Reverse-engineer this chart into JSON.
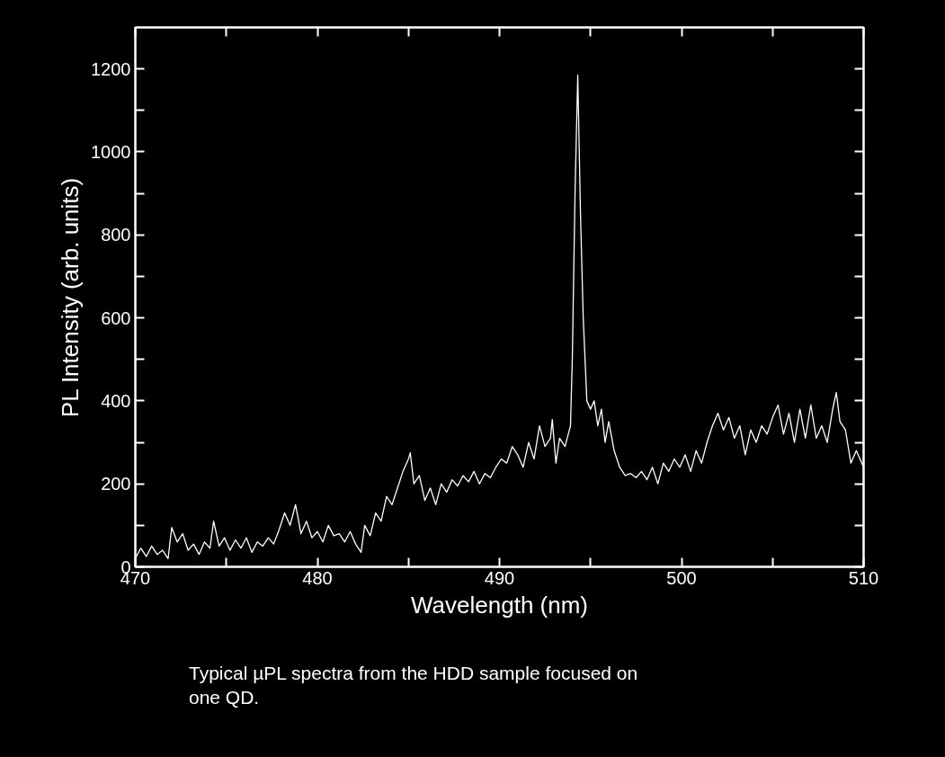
{
  "chart_data": {
    "type": "line",
    "xlabel": "Wavelength (nm)",
    "ylabel": "PL Intensity (arb. units)",
    "annotations": [
      "Typical µPL spectra from the HDD sample  focused on one QD."
    ],
    "x": [
      470.0,
      470.3,
      470.6,
      470.9,
      471.2,
      471.5,
      471.8,
      472.0,
      472.3,
      472.6,
      472.9,
      473.2,
      473.5,
      473.8,
      474.1,
      474.3,
      474.6,
      474.9,
      475.2,
      475.5,
      475.8,
      476.1,
      476.4,
      476.7,
      477.0,
      477.3,
      477.6,
      477.9,
      478.2,
      478.5,
      478.8,
      479.1,
      479.4,
      479.7,
      480.0,
      480.3,
      480.6,
      480.9,
      481.2,
      481.5,
      481.8,
      482.1,
      482.4,
      482.6,
      482.9,
      483.2,
      483.5,
      483.8,
      484.1,
      484.4,
      484.7,
      485.0,
      485.1,
      485.3,
      485.6,
      485.9,
      486.2,
      486.5,
      486.8,
      487.1,
      487.4,
      487.7,
      488.0,
      488.3,
      488.6,
      488.9,
      489.2,
      489.5,
      489.8,
      490.1,
      490.4,
      490.7,
      491.0,
      491.3,
      491.6,
      491.9,
      492.2,
      492.5,
      492.8,
      492.9,
      493.1,
      493.3,
      493.6,
      493.9,
      494.0,
      494.15,
      494.3,
      494.45,
      494.6,
      494.8,
      495.0,
      495.2,
      495.4,
      495.6,
      495.8,
      496.0,
      496.3,
      496.6,
      496.9,
      497.2,
      497.5,
      497.8,
      498.1,
      498.4,
      498.7,
      499.0,
      499.3,
      499.6,
      499.9,
      500.2,
      500.5,
      500.8,
      501.1,
      501.4,
      501.7,
      502.0,
      502.3,
      502.6,
      502.9,
      503.2,
      503.5,
      503.8,
      504.1,
      504.4,
      504.7,
      505.0,
      505.3,
      505.6,
      505.9,
      506.2,
      506.5,
      506.8,
      507.1,
      507.4,
      507.7,
      508.0,
      508.3,
      508.5,
      508.7,
      509.0,
      509.3,
      509.6,
      510.0
    ],
    "series": [
      {
        "color": "#ffffff",
        "values": [
          20,
          45,
          25,
          50,
          30,
          40,
          20,
          95,
          60,
          80,
          40,
          55,
          30,
          60,
          45,
          110,
          50,
          70,
          40,
          65,
          45,
          70,
          35,
          60,
          50,
          70,
          55,
          90,
          130,
          100,
          150,
          80,
          110,
          70,
          85,
          60,
          100,
          75,
          80,
          60,
          85,
          55,
          35,
          100,
          75,
          130,
          110,
          170,
          150,
          190,
          230,
          260,
          275,
          200,
          220,
          160,
          190,
          150,
          200,
          180,
          210,
          195,
          220,
          205,
          230,
          200,
          225,
          215,
          240,
          260,
          250,
          290,
          270,
          240,
          300,
          260,
          340,
          290,
          310,
          355,
          250,
          310,
          290,
          340,
          500,
          900,
          1185,
          850,
          600,
          400,
          380,
          400,
          340,
          380,
          300,
          350,
          280,
          240,
          220,
          225,
          215,
          230,
          210,
          240,
          200,
          250,
          230,
          260,
          240,
          270,
          230,
          280,
          250,
          300,
          340,
          370,
          330,
          360,
          310,
          340,
          270,
          330,
          300,
          340,
          320,
          360,
          390,
          320,
          370,
          300,
          380,
          310,
          390,
          310,
          340,
          300,
          380,
          420,
          350,
          330,
          250,
          280,
          240
        ]
      }
    ],
    "xlim": [
      470,
      510
    ],
    "ylim": [
      0,
      1300
    ],
    "xticks": [
      470,
      {
        "value": 475,
        "label": null
      },
      480,
      {
        "value": 485,
        "label": null
      },
      490,
      {
        "value": 495,
        "label": null
      },
      500,
      {
        "value": 505,
        "label": null
      },
      510
    ],
    "yticks": [
      0,
      {
        "value": 100,
        "label": null
      },
      200,
      {
        "value": 300,
        "label": null
      },
      400,
      {
        "value": 500,
        "label": null
      },
      600,
      {
        "value": 700,
        "label": null
      },
      800,
      {
        "value": 900,
        "label": null
      },
      1000,
      {
        "value": 1100,
        "label": null
      },
      1200
    ],
    "grid": false,
    "marker": "none",
    "line_style": "solid"
  }
}
